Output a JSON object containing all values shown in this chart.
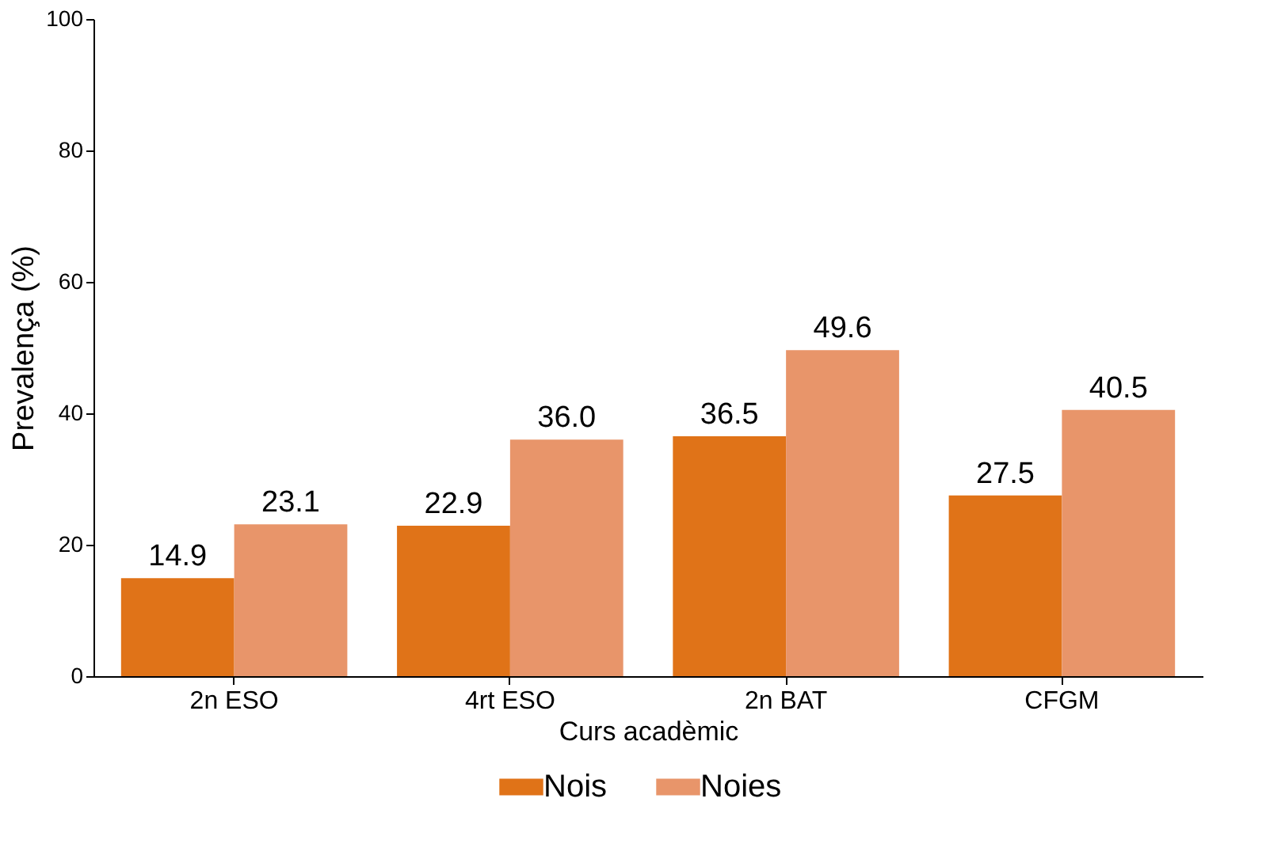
{
  "chart_data": {
    "type": "bar",
    "xlabel": "Curs acadèmic",
    "ylabel": "Prevalença (%)",
    "categories": [
      "2n ESO",
      "4rt ESO",
      "2n BAT",
      "CFGM"
    ],
    "series": [
      {
        "name": "Nois",
        "color": "#e07318",
        "values": [
          14.9,
          22.9,
          36.5,
          27.5
        ],
        "value_labels": [
          "14.9",
          "22.9",
          "36.5",
          "27.5"
        ]
      },
      {
        "name": "Noies",
        "color": "#e8956a",
        "values": [
          23.1,
          36.0,
          49.6,
          40.5
        ],
        "value_labels": [
          "23.1",
          "36.0",
          "49.6",
          "40.5"
        ]
      }
    ],
    "ylim": [
      0,
      100
    ],
    "yticks": [
      0,
      20,
      40,
      60,
      80,
      100
    ],
    "grid": false,
    "legend": "bottom"
  }
}
